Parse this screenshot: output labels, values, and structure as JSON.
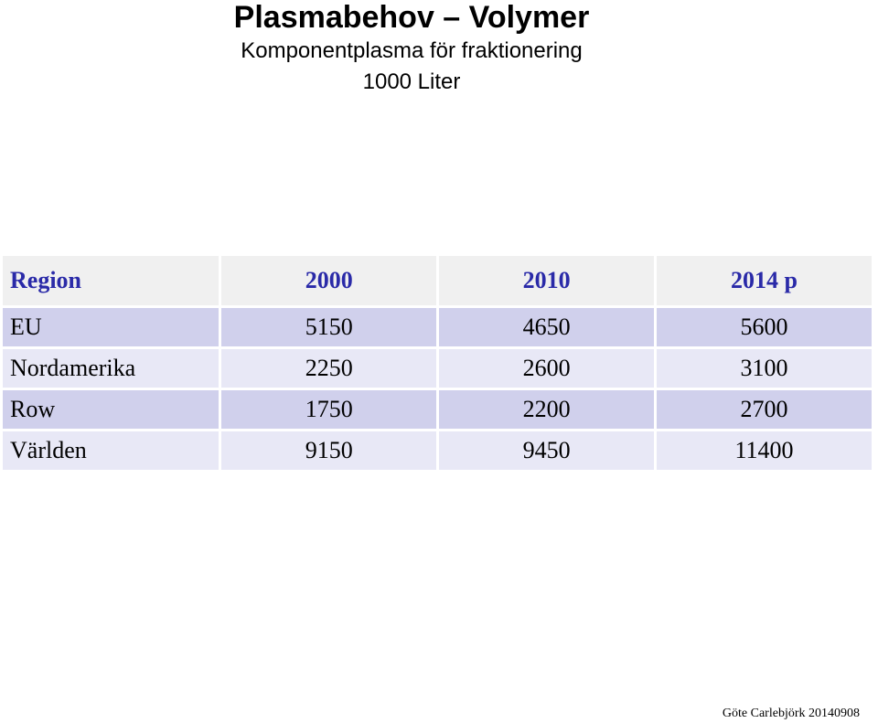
{
  "header": {
    "title": "Plasmabehov – Volymer",
    "subtitle": "Komponentplasma för fraktionering",
    "unit": "1000 Liter"
  },
  "table": {
    "headers": [
      "Region",
      "2000",
      "2010",
      "2014 p"
    ],
    "rows": [
      [
        "EU",
        "5150",
        "4650",
        "5600"
      ],
      [
        "Nordamerika",
        "2250",
        "2600",
        "3100"
      ],
      [
        "Row",
        "1750",
        "2200",
        "2700"
      ],
      [
        "Världen",
        "9150",
        "9450",
        "11400"
      ]
    ]
  },
  "footer": {
    "credit": "Göte Carlebjörk 20140908"
  },
  "colors": {
    "header_text": "#2a2aa8",
    "header_bg": "#f0f0f0",
    "row_dark": "#d0d0ec",
    "row_light": "#e8e8f6"
  }
}
